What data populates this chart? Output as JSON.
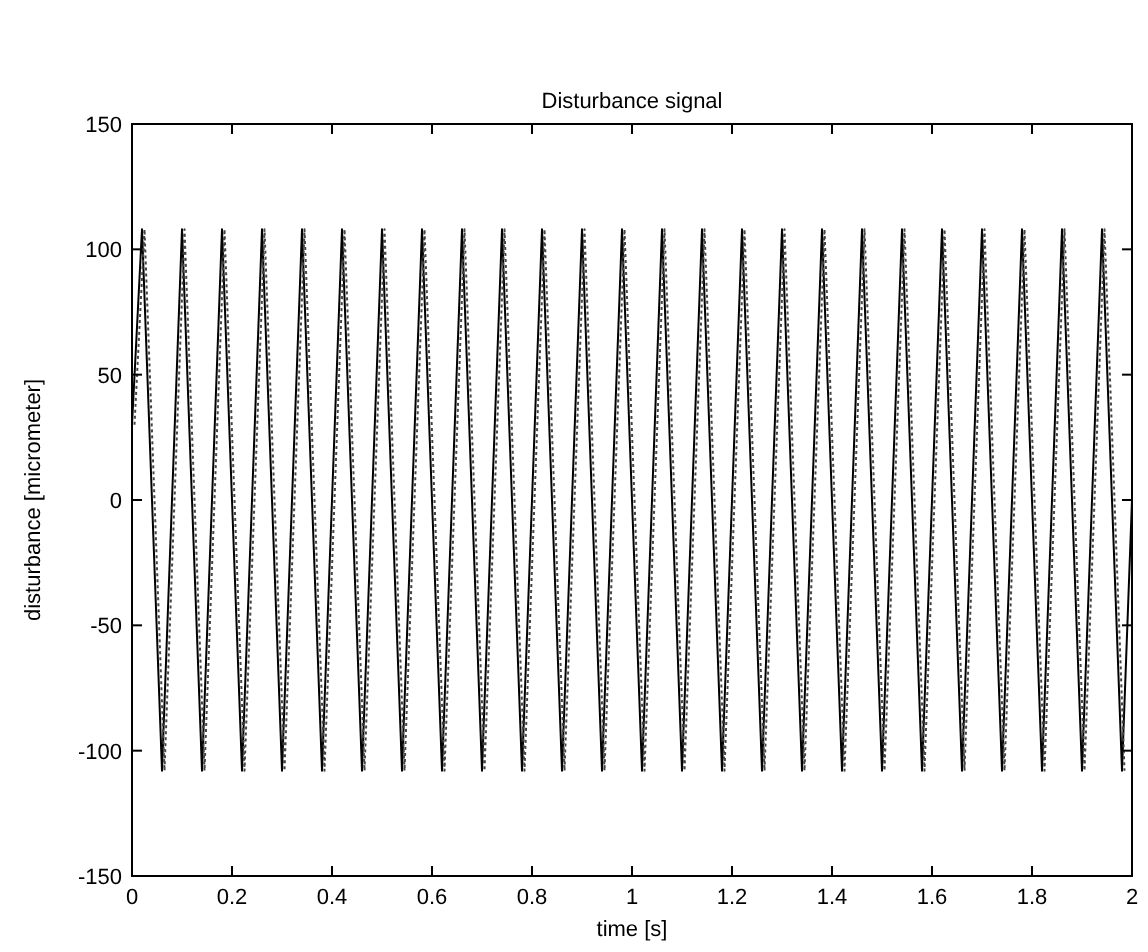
{
  "chart_data": {
    "type": "line",
    "title": "Disturbance signal",
    "xlabel": "time [s]",
    "ylabel": "disturbance [micrometer]",
    "xlim": [
      0,
      2
    ],
    "ylim": [
      -150,
      150
    ],
    "xticks": [
      0,
      0.2,
      0.4,
      0.6,
      0.8,
      1,
      1.2,
      1.4,
      1.6,
      1.8,
      2
    ],
    "yticks": [
      -150,
      -100,
      -50,
      0,
      50,
      100,
      150
    ],
    "grid": false,
    "x": [
      0,
      0.02,
      0.04,
      0.06,
      0.08,
      0.1,
      0.12,
      0.14,
      0.16,
      0.18,
      0.2,
      0.22,
      0.24,
      0.26,
      0.28,
      0.3,
      0.32,
      0.34,
      0.36,
      0.38,
      0.4,
      0.42,
      0.44,
      0.46,
      0.48,
      0.5,
      0.52,
      0.54,
      0.56,
      0.58,
      0.6,
      0.62,
      0.64,
      0.66,
      0.68,
      0.7,
      0.72,
      0.74,
      0.76,
      0.78,
      0.8,
      0.82,
      0.84,
      0.86,
      0.88,
      0.9,
      0.92,
      0.94,
      0.96,
      0.98,
      1,
      1.02,
      1.04,
      1.06,
      1.08,
      1.1,
      1.12,
      1.14,
      1.16,
      1.18,
      1.2,
      1.22,
      1.24,
      1.26,
      1.28,
      1.3,
      1.32,
      1.34,
      1.36,
      1.38,
      1.4,
      1.42,
      1.44,
      1.46,
      1.48,
      1.5,
      1.52,
      1.54,
      1.56,
      1.58,
      1.6,
      1.62,
      1.64,
      1.66,
      1.68,
      1.7,
      1.72,
      1.74,
      1.76,
      1.78,
      1.8,
      1.82,
      1.84,
      1.86,
      1.88,
      1.9,
      1.92,
      1.94,
      1.96,
      1.98,
      2
    ],
    "series": [
      {
        "color": "#000000",
        "line_style": "solid",
        "values": [
          30,
          108,
          0,
          -108,
          0,
          108,
          0,
          -108,
          0,
          108,
          0,
          -108,
          0,
          108,
          0,
          -108,
          0,
          108,
          0,
          -108,
          0,
          108,
          0,
          -108,
          0,
          108,
          0,
          -108,
          0,
          108,
          0,
          -108,
          0,
          108,
          0,
          -108,
          0,
          108,
          0,
          -108,
          0,
          108,
          0,
          -108,
          0,
          108,
          0,
          -108,
          0,
          108,
          0,
          -108,
          0,
          108,
          0,
          -108,
          0,
          108,
          0,
          -108,
          0,
          108,
          0,
          -108,
          0,
          108,
          0,
          -108,
          0,
          108,
          0,
          -108,
          0,
          108,
          0,
          -108,
          0,
          108,
          0,
          -108,
          0,
          108,
          0,
          -108,
          0,
          108,
          0,
          -108,
          0,
          108,
          0,
          -108,
          0,
          108,
          0,
          -108,
          0,
          108,
          0,
          -108,
          0
        ]
      },
      {
        "color": "#444444",
        "line_style": "dotted",
        "x": [
          0.005,
          0.025,
          0.045,
          0.065,
          0.085,
          0.105,
          0.125,
          0.145,
          0.165,
          0.185,
          0.205,
          0.225,
          0.245,
          0.265,
          0.285,
          0.305,
          0.325,
          0.345,
          0.365,
          0.385,
          0.405,
          0.425,
          0.445,
          0.465,
          0.485,
          0.505,
          0.525,
          0.545,
          0.565,
          0.585,
          0.605,
          0.625,
          0.645,
          0.665,
          0.685,
          0.705,
          0.725,
          0.745,
          0.765,
          0.785,
          0.805,
          0.825,
          0.845,
          0.865,
          0.885,
          0.905,
          0.925,
          0.945,
          0.965,
          0.985,
          1.005,
          1.025,
          1.045,
          1.065,
          1.085,
          1.105,
          1.125,
          1.145,
          1.165,
          1.185,
          1.205,
          1.225,
          1.245,
          1.265,
          1.285,
          1.305,
          1.325,
          1.345,
          1.365,
          1.385,
          1.405,
          1.425,
          1.445,
          1.465,
          1.485,
          1.505,
          1.525,
          1.545,
          1.565,
          1.585,
          1.605,
          1.625,
          1.645,
          1.665,
          1.685,
          1.705,
          1.725,
          1.745,
          1.765,
          1.785,
          1.805,
          1.825,
          1.845,
          1.865,
          1.885,
          1.905,
          1.925,
          1.945,
          1.965,
          1.985
        ],
        "values": [
          30,
          108,
          0,
          -108,
          0,
          108,
          0,
          -108,
          0,
          108,
          0,
          -108,
          0,
          108,
          0,
          -108,
          0,
          108,
          0,
          -108,
          0,
          108,
          0,
          -108,
          0,
          108,
          0,
          -108,
          0,
          108,
          0,
          -108,
          0,
          108,
          0,
          -108,
          0,
          108,
          0,
          -108,
          0,
          108,
          0,
          -108,
          0,
          108,
          0,
          -108,
          0,
          108,
          0,
          -108,
          0,
          108,
          0,
          -108,
          0,
          108,
          0,
          -108,
          0,
          108,
          0,
          -108,
          0,
          108,
          0,
          -108,
          0,
          108,
          0,
          -108,
          0,
          108,
          0,
          -108,
          0,
          108,
          0,
          -108,
          0,
          108,
          0,
          -108,
          0,
          108,
          0,
          -108,
          0,
          108,
          0,
          -108,
          0,
          108,
          0,
          -108,
          0,
          108,
          0,
          -108
        ]
      }
    ]
  }
}
